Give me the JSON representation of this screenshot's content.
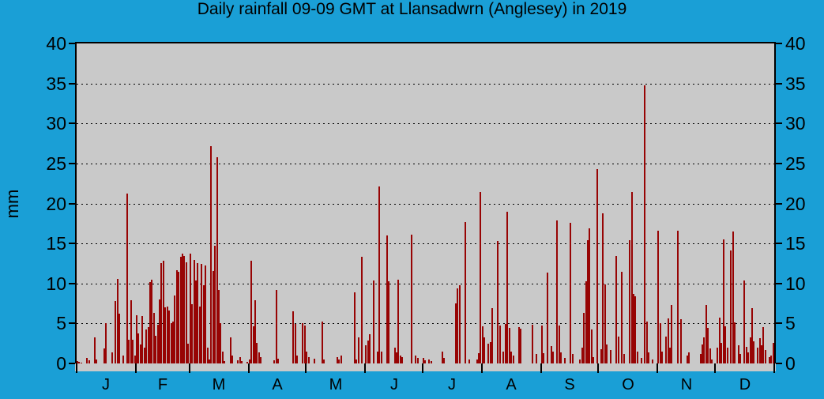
{
  "title": "Daily rainfall 09-09 GMT at Llansadwrn (Anglesey) in 2019",
  "y_axis": {
    "unit_label": "mm",
    "tick_values": [
      0,
      5,
      10,
      15,
      20,
      25,
      30,
      35,
      40
    ],
    "min": 0,
    "max": 40
  },
  "x_axis": {
    "month_labels": [
      "J",
      "F",
      "M",
      "A",
      "M",
      "J",
      "J",
      "A",
      "S",
      "O",
      "N",
      "D"
    ],
    "month_start_days": [
      0,
      31,
      59,
      90,
      120,
      151,
      181,
      212,
      243,
      273,
      304,
      334,
      365
    ],
    "days_in_year": 365
  },
  "colors": {
    "background": "#1a9fd6",
    "plot_background": "#c9c9c9",
    "bar": "#970404",
    "axis_and_text": "#000000"
  },
  "chart_data": {
    "type": "bar",
    "title": "Daily rainfall 09-09 GMT at Llansadwrn (Anglesey) in 2019",
    "xlabel": "",
    "ylabel": "mm",
    "ylim": [
      0,
      40
    ],
    "grid": "horizontal-dotted-every-5mm",
    "legend": "none",
    "x_unit": "day of year (1-365), Jan 1 to Dec 31 2019",
    "categories_months": [
      "Jan",
      "Feb",
      "Mar",
      "Apr",
      "May",
      "Jun",
      "Jul",
      "Aug",
      "Sep",
      "Oct",
      "Nov",
      "Dec"
    ],
    "values": [
      0.3,
      0.2,
      0.1,
      0,
      0,
      0.7,
      0.4,
      0,
      0,
      3.3,
      0.5,
      0,
      0,
      0,
      1.9,
      5.0,
      0,
      0,
      1.4,
      0,
      7.8,
      10.6,
      6.2,
      0,
      1.0,
      0,
      21.2,
      3.0,
      7.9,
      3.0,
      1.0,
      6.0,
      3.8,
      2.4,
      5.9,
      2.0,
      4.2,
      4.5,
      10.2,
      10.5,
      6.3,
      3.5,
      4.8,
      8.0,
      12.5,
      12.8,
      7.0,
      7.1,
      6.6,
      5.0,
      5.2,
      8.5,
      11.7,
      11.5,
      13.3,
      13.7,
      13.4,
      12.6,
      2.5,
      13.7,
      7.4,
      12.9,
      10.4,
      12.5,
      7.1,
      12.4,
      9.8,
      12.2,
      2.0,
      0.5,
      27.2,
      11.6,
      14.7,
      25.8,
      9.2,
      5.0,
      1.5,
      0.3,
      0,
      0,
      3.3,
      1.0,
      0,
      0,
      0.4,
      0.8,
      0.3,
      0,
      0,
      0.2,
      0.5,
      12.8,
      4.6,
      7.9,
      2.6,
      1.4,
      0.8,
      0,
      0,
      0,
      0,
      0,
      0,
      0.4,
      9.2,
      0.6,
      0,
      0,
      0,
      0,
      0,
      0,
      0,
      6.5,
      4.9,
      1.0,
      0,
      0,
      5.0,
      4.7,
      1.5,
      0.8,
      0,
      0,
      0.6,
      0,
      0,
      0,
      5.2,
      0.5,
      0,
      0,
      0,
      0,
      0,
      0,
      0.8,
      0.5,
      1.0,
      0,
      0,
      0,
      0,
      0,
      0,
      8.9,
      0.5,
      3.3,
      0,
      13.3,
      0,
      2.3,
      2.9,
      3.7,
      0,
      10.4,
      0,
      1.5,
      22.1,
      1.5,
      0,
      0,
      16.0,
      10.3,
      0,
      0,
      2.0,
      1.4,
      10.5,
      1.0,
      0.8,
      0,
      0,
      0,
      0,
      16.1,
      0,
      1.0,
      0.7,
      0,
      0,
      0.7,
      0.4,
      0,
      0.5,
      0.3,
      0,
      0,
      0,
      0,
      0,
      1.5,
      0.7,
      0,
      0,
      0,
      0,
      0,
      7.5,
      9.4,
      9.8,
      0,
      0,
      17.7,
      0,
      0.5,
      0,
      0,
      0,
      0.5,
      1.3,
      21.4,
      4.6,
      3.3,
      0,
      2.5,
      2.7,
      6.9,
      0,
      0,
      15.3,
      4.7,
      0,
      1.5,
      4.9,
      19.0,
      4.4,
      1.5,
      1.0,
      0,
      0,
      4.5,
      4.3,
      0,
      0,
      0,
      0,
      0,
      4.8,
      0,
      1.2,
      0,
      0,
      4.7,
      1.3,
      0,
      11.4,
      0,
      2.2,
      1.5,
      0,
      17.9,
      4.7,
      1.4,
      0,
      0.7,
      0,
      0,
      17.6,
      1.2,
      0,
      0,
      0,
      0.5,
      2.0,
      6.3,
      10.3,
      15.4,
      16.9,
      4.2,
      0.8,
      0,
      24.3,
      0,
      1.8,
      18.8,
      9.9,
      2.4,
      0,
      1.7,
      0,
      0,
      13.4,
      3.4,
      0,
      11.5,
      1.2,
      0,
      0,
      15.4,
      21.4,
      8.7,
      8.4,
      1.5,
      0,
      0.7,
      0,
      34.8,
      5.2,
      1.4,
      0,
      0.5,
      0,
      0,
      16.6,
      5.0,
      1.5,
      0,
      3.4,
      5.6,
      2.0,
      7.3,
      0,
      0,
      16.6,
      0,
      5.5,
      0,
      0,
      1.0,
      1.4,
      0,
      0,
      0,
      0,
      0,
      1.2,
      2.4,
      3.3,
      7.3,
      4.4,
      1.9,
      0.5,
      0,
      0,
      2.0,
      5.7,
      2.6,
      15.5,
      4.6,
      2.0,
      0,
      14.1,
      16.5,
      5.1,
      0,
      2.3,
      1.2,
      0,
      10.4,
      2.1,
      1.4,
      3.3,
      6.9,
      2.8,
      0,
      2.0,
      3.2,
      2.3,
      4.5,
      1.7,
      0,
      0.8,
      1.0,
      2.6
    ]
  }
}
